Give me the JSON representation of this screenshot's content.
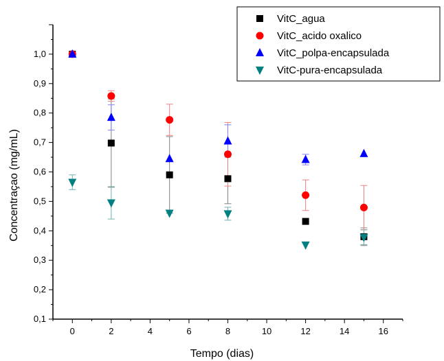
{
  "chart_data": {
    "type": "scatter",
    "title": "",
    "xlabel": "Tempo (dias)",
    "ylabel": "Concentraçao (mg/mL)",
    "xlim": [
      -1,
      17
    ],
    "ylim": [
      0.1,
      1.1
    ],
    "x_ticks": [
      0,
      2,
      4,
      6,
      8,
      10,
      12,
      14,
      16
    ],
    "y_ticks": [
      0.1,
      0.2,
      0.3,
      0.4,
      0.5,
      0.6,
      0.7,
      0.8,
      0.9,
      1.0
    ],
    "y_tick_labels": [
      "0,1",
      "0,2",
      "0,3",
      "0,4",
      "0,5",
      "0,6",
      "0,7",
      "0,8",
      "0,9",
      "1,0"
    ],
    "grid": false,
    "legend_position": "top-right",
    "series": [
      {
        "name": "VitC_agua",
        "marker": "square",
        "color": "#000000",
        "error_color": "#808080",
        "points": [
          {
            "x": 0,
            "y": 1.0,
            "err": 0.0
          },
          {
            "x": 2,
            "y": 0.698,
            "err": 0.15
          },
          {
            "x": 5,
            "y": 0.59,
            "err": 0.13
          },
          {
            "x": 8,
            "y": 0.577,
            "err": 0.085
          },
          {
            "x": 12,
            "y": 0.432,
            "err": 0.0
          },
          {
            "x": 15,
            "y": 0.38,
            "err": 0.03
          }
        ]
      },
      {
        "name": "VitC_acido oxalico",
        "marker": "circle",
        "color": "#ff0000",
        "error_color": "#f08080",
        "points": [
          {
            "x": 0,
            "y": 1.0,
            "err": 0.0
          },
          {
            "x": 2,
            "y": 0.858,
            "err": 0.018
          },
          {
            "x": 5,
            "y": 0.777,
            "err": 0.053
          },
          {
            "x": 8,
            "y": 0.66,
            "err": 0.108
          },
          {
            "x": 12,
            "y": 0.521,
            "err": 0.052
          },
          {
            "x": 15,
            "y": 0.479,
            "err": 0.075
          }
        ]
      },
      {
        "name": "VitC_polpa-encapsulada",
        "marker": "triangle-up",
        "color": "#0000ff",
        "error_color": "#8080ff",
        "points": [
          {
            "x": 0,
            "y": 1.0,
            "err": 0.0
          },
          {
            "x": 2,
            "y": 0.785,
            "err": 0.043
          },
          {
            "x": 5,
            "y": 0.645,
            "err": 0.0
          },
          {
            "x": 8,
            "y": 0.705,
            "err": 0.055
          },
          {
            "x": 12,
            "y": 0.642,
            "err": 0.018
          },
          {
            "x": 15,
            "y": 0.662,
            "err": 0.0
          }
        ]
      },
      {
        "name": "VitC-pura-encapsulada",
        "marker": "triangle-down",
        "color": "#008080",
        "error_color": "#70b0b0",
        "points": [
          {
            "x": 0,
            "y": 0.565,
            "err": 0.025
          },
          {
            "x": 2,
            "y": 0.495,
            "err": 0.055
          },
          {
            "x": 5,
            "y": 0.46,
            "err": 0.0
          },
          {
            "x": 8,
            "y": 0.458,
            "err": 0.022
          },
          {
            "x": 12,
            "y": 0.352,
            "err": 0.0
          },
          {
            "x": 15,
            "y": 0.378,
            "err": 0.025
          }
        ]
      }
    ]
  }
}
